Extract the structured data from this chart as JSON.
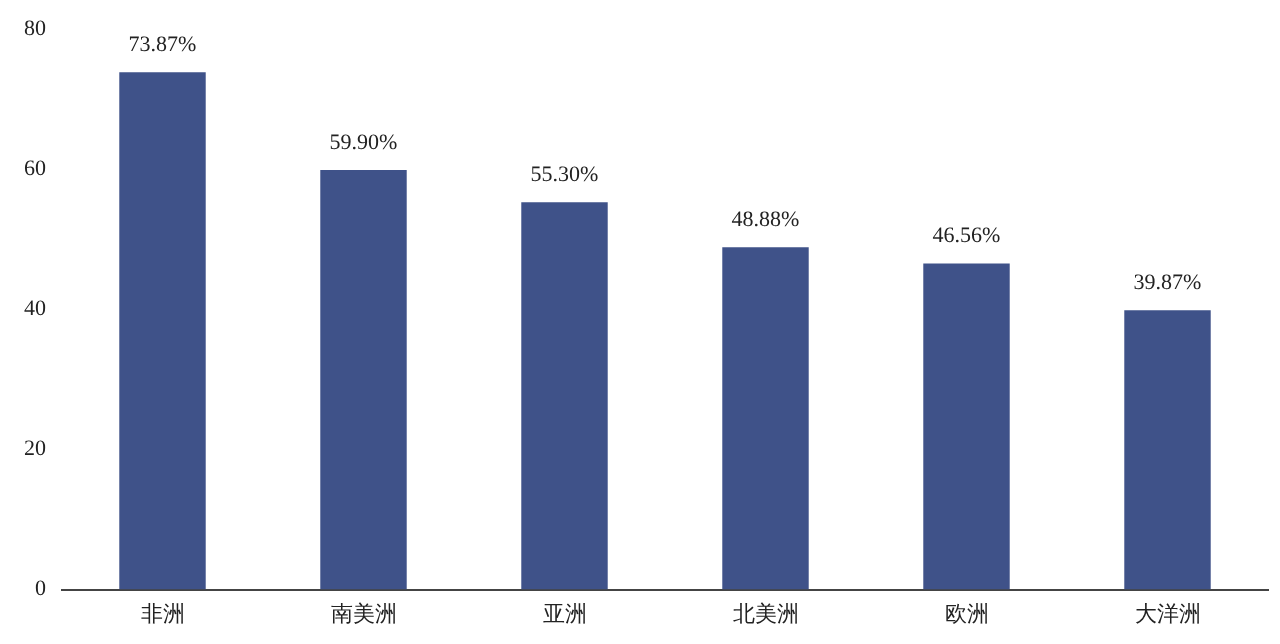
{
  "chart_data": {
    "type": "bar",
    "categories": [
      "非洲",
      "南美洲",
      "亚洲",
      "北美洲",
      "欧洲",
      "大洋洲"
    ],
    "values": [
      73.87,
      59.9,
      55.3,
      48.88,
      46.56,
      39.87
    ],
    "value_labels": [
      "73.87%",
      "59.90%",
      "55.30%",
      "48.88%",
      "46.56%",
      "39.87%"
    ],
    "color": "#3f5289",
    "ylim": [
      0,
      80
    ],
    "yticks": [
      0,
      20,
      40,
      60,
      80
    ],
    "grid": false,
    "legend": false
  }
}
